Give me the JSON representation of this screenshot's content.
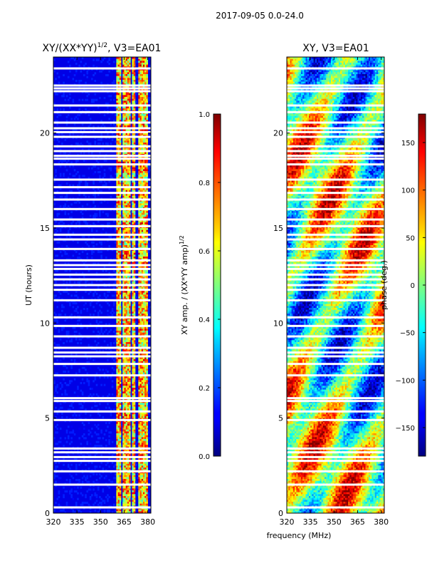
{
  "figure_title": "2017-09-05 0.0-24.0",
  "chart_data": [
    {
      "type": "heatmap",
      "title": "XY/(XX*YY)",
      "title_sup": "1/2",
      "title_suffix": ", V3=EA01",
      "xlabel": "",
      "ylabel": "UT (hours)",
      "xlim": [
        320,
        382
      ],
      "ylim": [
        0,
        24
      ],
      "xticks": [
        "320",
        "335",
        "350",
        "365",
        "380"
      ],
      "yticks": [
        "0",
        "5",
        "10",
        "15",
        "20"
      ],
      "colorbar": {
        "label": "XY amp. / (XX*YY amp)",
        "label_sup": "1/2",
        "range": [
          0.0,
          1.0
        ],
        "ticks": [
          "0.0",
          "0.2",
          "0.4",
          "0.6",
          "0.8",
          "1.0"
        ]
      },
      "high_amplitude_bands_mhz": [
        [
          360,
          363
        ],
        [
          364,
          369
        ],
        [
          370,
          372
        ],
        [
          374,
          380
        ]
      ],
      "background_value": 0.1
    },
    {
      "type": "heatmap",
      "title": "XY, V3=EA01",
      "xlabel": "frequency (MHz)",
      "ylabel": "",
      "xlim": [
        320,
        382
      ],
      "ylim": [
        0,
        24
      ],
      "xticks": [
        "320",
        "335",
        "350",
        "365",
        "380"
      ],
      "yticks": [
        "0",
        "5",
        "10",
        "15",
        "20"
      ],
      "colorbar": {
        "label": "phase (deg.)",
        "range": [
          -180,
          180
        ],
        "ticks": [
          "-150",
          "-100",
          "-50",
          "0",
          "50",
          "100",
          "150"
        ]
      }
    }
  ],
  "data_gaps_ut_hours": [
    0.3,
    1.5,
    2.2,
    2.75,
    2.95,
    3.2,
    3.4,
    4.9,
    5.35,
    5.9,
    6.05,
    7.25,
    7.85,
    8.25,
    8.45,
    8.7,
    9.3,
    9.85,
    10.3,
    11.2,
    11.75,
    12.0,
    12.3,
    12.55,
    12.85,
    13.05,
    13.3,
    13.9,
    14.4,
    14.65,
    15.1,
    15.45,
    16.0,
    16.5,
    16.85,
    17.15,
    17.55,
    18.35,
    18.65,
    18.8,
    19.05,
    19.3,
    19.8,
    20.05,
    20.25,
    20.55,
    21.1,
    21.45,
    22.2,
    22.35,
    22.5,
    23.4
  ]
}
